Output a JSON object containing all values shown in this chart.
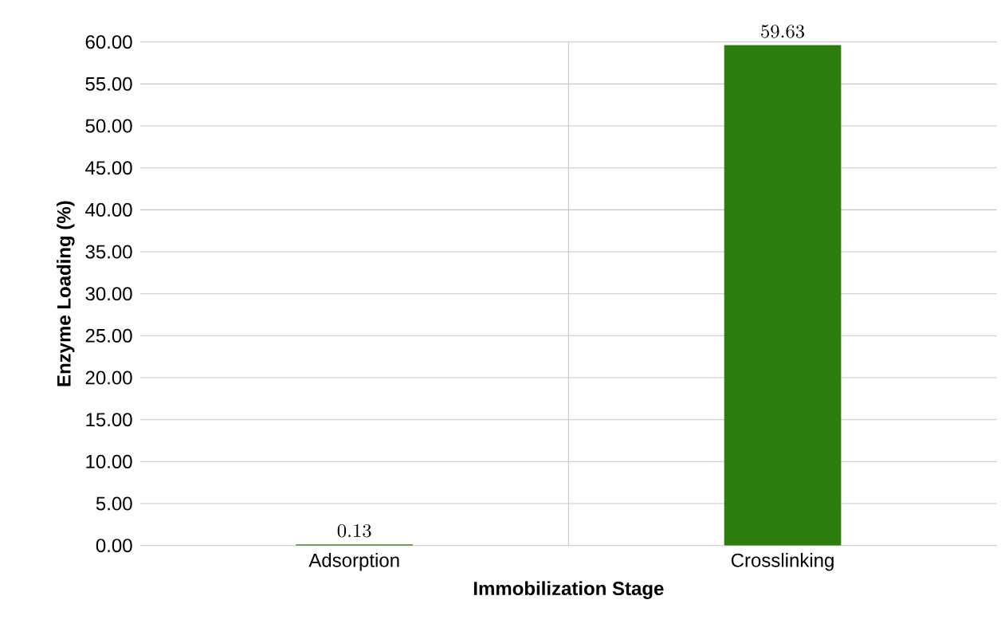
{
  "chart_data": {
    "type": "bar",
    "xlabel": "Immobilization Stage",
    "ylabel": "Enzyme Loading (%)",
    "categories": [
      "Adsorption",
      "Crosslinking"
    ],
    "values": [
      0.13,
      59.63
    ],
    "color": "#2e7d0f",
    "ylim": [
      0,
      60
    ],
    "yticks": [
      {
        "value": 0,
        "label": "0.00"
      },
      {
        "value": 5,
        "label": "5.00"
      },
      {
        "value": 10,
        "label": "10.00"
      },
      {
        "value": 15,
        "label": "15.00"
      },
      {
        "value": 20,
        "label": "20.00"
      },
      {
        "value": 25,
        "label": "25.00"
      },
      {
        "value": 30,
        "label": "30.00"
      },
      {
        "value": 35,
        "label": "35.00"
      },
      {
        "value": 40,
        "label": "40.00"
      },
      {
        "value": 45,
        "label": "45.00"
      },
      {
        "value": 50,
        "label": "50.00"
      },
      {
        "value": 55,
        "label": "55.00"
      },
      {
        "value": 60,
        "label": "60.00"
      }
    ],
    "grid": true,
    "data_labels": true
  }
}
